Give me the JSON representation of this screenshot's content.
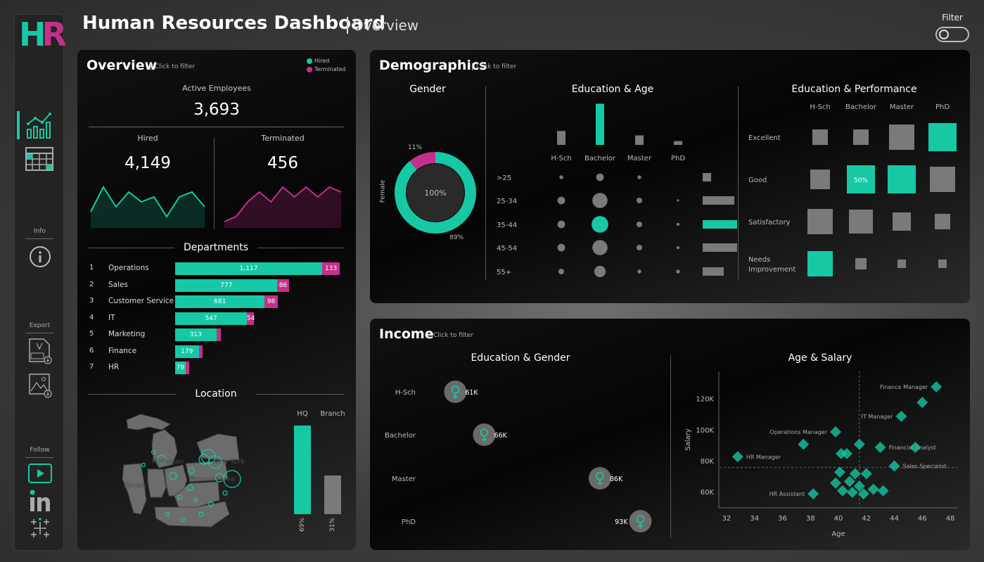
{
  "header": {
    "logo_text_h": "H",
    "logo_text_r": "R",
    "title": "Human Resources Dashboard",
    "subtitle": "Overview",
    "filter_label": "Filter"
  },
  "sidebar": {
    "info_label": "Info",
    "export_label": "Export",
    "follow_label": "Follow",
    "icons": [
      "line-chart-icon",
      "calendar-icon",
      "info-icon",
      "pdf-icon",
      "image-export-icon",
      "youtube-icon",
      "linkedin-icon",
      "tableau-icon"
    ]
  },
  "colors": {
    "hired": "#16c9a4",
    "terminated": "#c42f8c",
    "grey": "#7a7a7a"
  },
  "overview": {
    "title": "Overview",
    "hint": "Click to filter",
    "legend_hired": "Hired",
    "legend_terminated": "Terminated",
    "active_label": "Active Employees",
    "active_value": "3,693",
    "hired_label": "Hired",
    "hired_value": "4,149",
    "terminated_label": "Terminated",
    "terminated_value": "456",
    "hired_trend": [
      3,
      8,
      4,
      7,
      5,
      6,
      2,
      6,
      7,
      4
    ],
    "terminated_trend": [
      1,
      2,
      5,
      7,
      5,
      8,
      6,
      8,
      6,
      8,
      7
    ],
    "departments_title": "Departments",
    "departments": [
      {
        "rank": "1",
        "name": "Operations",
        "hired": 1117,
        "hired_label": "1,117",
        "terminated": 133,
        "terminated_label": "133"
      },
      {
        "rank": "2",
        "name": "Sales",
        "hired": 777,
        "hired_label": "777",
        "terminated": 86,
        "terminated_label": "86"
      },
      {
        "rank": "3",
        "name": "Customer Service",
        "hired": 681,
        "hired_label": "681",
        "terminated": 98,
        "terminated_label": "98"
      },
      {
        "rank": "4",
        "name": "IT",
        "hired": 547,
        "hired_label": "547",
        "terminated": 54,
        "terminated_label": "54"
      },
      {
        "rank": "5",
        "name": "Marketing",
        "hired": 313,
        "hired_label": "313",
        "terminated": 35,
        "terminated_label": ""
      },
      {
        "rank": "6",
        "name": "Finance",
        "hired": 179,
        "hired_label": "179",
        "terminated": 25,
        "terminated_label": ""
      },
      {
        "rank": "7",
        "name": "HR",
        "hired": 79,
        "hired_label": "79",
        "terminated": 20,
        "terminated_label": ""
      }
    ],
    "location_title": "Location",
    "hq_label": "HQ",
    "branch_label": "Branch",
    "hq_pct": 69,
    "hq_pct_label": "69%",
    "branch_pct": 31,
    "branch_pct_label": "31%",
    "map_labels": [
      "Michigan",
      "New York",
      "Illinois",
      "Pennsylvania"
    ]
  },
  "demographics": {
    "title": "Demographics",
    "hint": "Click to filter",
    "gender_title": "Gender",
    "female_label": "Female",
    "donut_center": "100%",
    "donut_small_pct": 11,
    "donut_small_label": "11%",
    "donut_large_pct": 89,
    "donut_large_label": "89%",
    "edu_age_title": "Education & Age",
    "education_levels": [
      "H-Sch",
      "Bachelor",
      "Master",
      "PhD"
    ],
    "education_totals": [
      0.22,
      0.65,
      0.15,
      0.06
    ],
    "age_groups": [
      ">25",
      "25-34",
      "35-44",
      "45-54",
      "55+"
    ],
    "age_matrix": [
      [
        1,
        2,
        1,
        0
      ],
      [
        2,
        4,
        1.5,
        0.6
      ],
      [
        2,
        4.4,
        1.5,
        0.8
      ],
      [
        2,
        4,
        1.5,
        0.8
      ],
      [
        1.5,
        3,
        1,
        1
      ]
    ],
    "age_totals": [
      0.2,
      0.75,
      1.0,
      0.85,
      0.5
    ],
    "edu_perf_title": "Education & Performance",
    "perf_levels": [
      "Excellent",
      "Good",
      "Satisfactory",
      "Needs Improvement"
    ],
    "perf_matrix": [
      [
        0.55,
        0.55,
        0.9,
        1.0
      ],
      [
        0.7,
        1.0,
        1.0,
        0.9
      ],
      [
        0.9,
        0.85,
        0.65,
        0.55
      ],
      [
        0.9,
        0.4,
        0.3,
        0.3
      ]
    ],
    "perf_highlight": [
      [
        0,
        3
      ],
      [
        1,
        1
      ],
      [
        1,
        2
      ],
      [
        3,
        0
      ]
    ],
    "perf_cell_label": "50%"
  },
  "income": {
    "title": "Income",
    "hint": "Click to filter",
    "edu_gender_title": "Education & Gender",
    "rows": [
      {
        "level": "H-Sch",
        "salary": 61,
        "label": "61K"
      },
      {
        "level": "Bachelor",
        "salary": 66,
        "label": "66K"
      },
      {
        "level": "Master",
        "salary": 86,
        "label": "86K"
      },
      {
        "level": "PhD",
        "salary": 93,
        "label": "93K"
      }
    ],
    "age_salary_title": "Age & Salary",
    "y_axis_label": "Salary",
    "x_axis_label": "Age",
    "y_ticks": [
      "60K",
      "80K",
      "100K",
      "120K"
    ],
    "y_tick_values": [
      60,
      80,
      100,
      120
    ],
    "x_ticks": [
      "32",
      "34",
      "36",
      "38",
      "40",
      "42",
      "44",
      "46",
      "48"
    ],
    "x_tick_values": [
      32,
      34,
      36,
      38,
      40,
      42,
      44,
      46,
      48
    ],
    "x_range": [
      31.5,
      48.5
    ],
    "y_range": [
      50,
      138
    ],
    "points": [
      {
        "age": 47,
        "salary": 128,
        "label": "Finance Manager"
      },
      {
        "age": 46,
        "salary": 118,
        "label": ""
      },
      {
        "age": 44.5,
        "salary": 109,
        "label": "IT Manager"
      },
      {
        "age": 39.8,
        "salary": 99,
        "label": "Operations Manager"
      },
      {
        "age": 37.5,
        "salary": 91,
        "label": ""
      },
      {
        "age": 41.5,
        "salary": 91,
        "label": ""
      },
      {
        "age": 43,
        "salary": 89,
        "label": "Financial Analyst"
      },
      {
        "age": 45.5,
        "salary": 89,
        "label": ""
      },
      {
        "age": 40.2,
        "salary": 85,
        "label": ""
      },
      {
        "age": 40.6,
        "salary": 85,
        "label": ""
      },
      {
        "age": 32.8,
        "salary": 83,
        "label": "HR Manager"
      },
      {
        "age": 44,
        "salary": 77,
        "label": "Sales Specialist"
      },
      {
        "age": 40.1,
        "salary": 73,
        "label": ""
      },
      {
        "age": 41.2,
        "salary": 72,
        "label": ""
      },
      {
        "age": 42,
        "salary": 72,
        "label": ""
      },
      {
        "age": 39.8,
        "salary": 66,
        "label": ""
      },
      {
        "age": 40.8,
        "salary": 67,
        "label": ""
      },
      {
        "age": 41.5,
        "salary": 64,
        "label": ""
      },
      {
        "age": 42.5,
        "salary": 62,
        "label": ""
      },
      {
        "age": 40.3,
        "salary": 61,
        "label": ""
      },
      {
        "age": 41.0,
        "salary": 60,
        "label": ""
      },
      {
        "age": 41.8,
        "salary": 59,
        "label": ""
      },
      {
        "age": 38.2,
        "salary": 59,
        "label": "HR Assistant"
      },
      {
        "age": 43.2,
        "salary": 61,
        "label": ""
      }
    ],
    "ref_age": 41.5,
    "ref_salary": 76
  }
}
